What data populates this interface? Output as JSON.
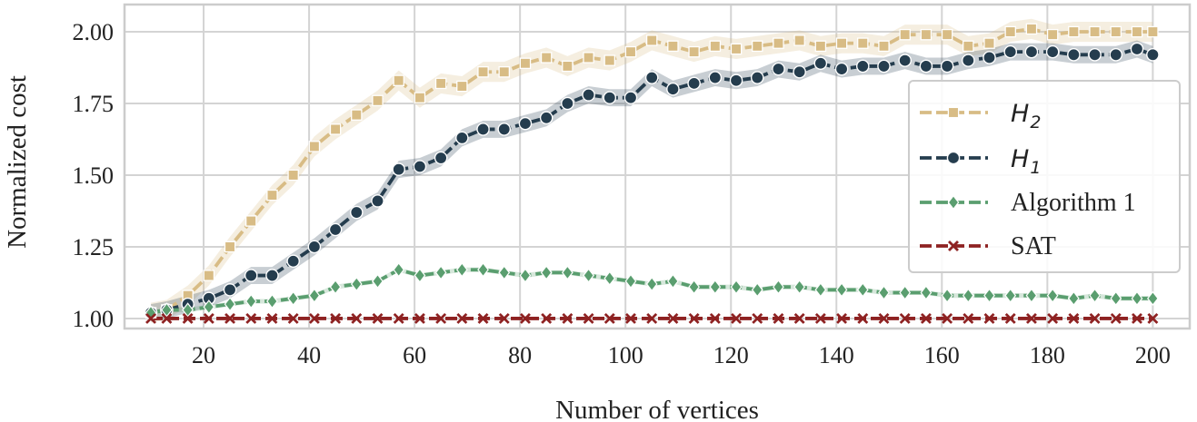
{
  "chart_data": {
    "type": "line",
    "xlabel": "Number of vertices",
    "ylabel": "Normalized cost",
    "xlim": [
      5,
      207
    ],
    "ylim": [
      0.965,
      2.095
    ],
    "xticks": [
      20,
      40,
      60,
      80,
      100,
      120,
      140,
      160,
      180,
      200
    ],
    "yticks": [
      1.0,
      1.25,
      1.5,
      1.75,
      2.0
    ],
    "ytick_labels": [
      "1.00",
      "1.25",
      "1.50",
      "1.75",
      "2.00"
    ],
    "grid": true,
    "legend_position": "right",
    "x": [
      10,
      13,
      17,
      21,
      25,
      29,
      33,
      37,
      41,
      45,
      49,
      53,
      57,
      61,
      65,
      69,
      73,
      77,
      81,
      85,
      89,
      93,
      97,
      101,
      105,
      109,
      113,
      117,
      121,
      125,
      129,
      133,
      137,
      141,
      145,
      149,
      153,
      157,
      161,
      165,
      169,
      173,
      177,
      181,
      185,
      189,
      193,
      197,
      200
    ],
    "series": [
      {
        "name": "H",
        "name_sub": "2",
        "marker": "square",
        "color": "#D8BC85",
        "band": 0.035,
        "values": [
          1.02,
          1.03,
          1.08,
          1.15,
          1.25,
          1.34,
          1.43,
          1.5,
          1.6,
          1.66,
          1.71,
          1.76,
          1.83,
          1.77,
          1.82,
          1.81,
          1.86,
          1.86,
          1.89,
          1.91,
          1.88,
          1.91,
          1.9,
          1.93,
          1.97,
          1.95,
          1.93,
          1.95,
          1.94,
          1.95,
          1.96,
          1.97,
          1.95,
          1.96,
          1.96,
          1.95,
          1.99,
          1.99,
          1.99,
          1.95,
          1.96,
          2.0,
          2.01,
          1.99,
          2.0,
          2.0,
          2.0,
          2.0,
          2.0
        ]
      },
      {
        "name": "H",
        "name_sub": "1",
        "marker": "circle",
        "color": "#253D4E",
        "band": 0.03,
        "values": [
          1.02,
          1.03,
          1.05,
          1.07,
          1.1,
          1.15,
          1.15,
          1.2,
          1.25,
          1.31,
          1.37,
          1.41,
          1.52,
          1.53,
          1.56,
          1.63,
          1.66,
          1.66,
          1.68,
          1.7,
          1.75,
          1.78,
          1.77,
          1.77,
          1.84,
          1.8,
          1.82,
          1.84,
          1.83,
          1.84,
          1.87,
          1.86,
          1.89,
          1.87,
          1.88,
          1.88,
          1.9,
          1.88,
          1.88,
          1.9,
          1.91,
          1.93,
          1.93,
          1.93,
          1.92,
          1.92,
          1.92,
          1.94,
          1.92
        ]
      },
      {
        "name": "Algorithm 1",
        "marker": "diamond",
        "color": "#5A9E6F",
        "band": 0.008,
        "values": [
          1.02,
          1.03,
          1.03,
          1.04,
          1.05,
          1.06,
          1.06,
          1.07,
          1.08,
          1.11,
          1.12,
          1.13,
          1.17,
          1.15,
          1.16,
          1.17,
          1.17,
          1.16,
          1.15,
          1.16,
          1.16,
          1.15,
          1.14,
          1.13,
          1.12,
          1.13,
          1.11,
          1.11,
          1.11,
          1.1,
          1.11,
          1.11,
          1.1,
          1.1,
          1.1,
          1.09,
          1.09,
          1.09,
          1.08,
          1.08,
          1.08,
          1.08,
          1.08,
          1.08,
          1.07,
          1.08,
          1.07,
          1.07,
          1.07
        ]
      },
      {
        "name": "SAT",
        "marker": "x",
        "color": "#8E2222",
        "band": 0,
        "values": [
          1.0,
          1.0,
          1.0,
          1.0,
          1.0,
          1.0,
          1.0,
          1.0,
          1.0,
          1.0,
          1.0,
          1.0,
          1.0,
          1.0,
          1.0,
          1.0,
          1.0,
          1.0,
          1.0,
          1.0,
          1.0,
          1.0,
          1.0,
          1.0,
          1.0,
          1.0,
          1.0,
          1.0,
          1.0,
          1.0,
          1.0,
          1.0,
          1.0,
          1.0,
          1.0,
          1.0,
          1.0,
          1.0,
          1.0,
          1.0,
          1.0,
          1.0,
          1.0,
          1.0,
          1.0,
          1.0,
          1.0,
          1.0,
          1.0
        ]
      }
    ]
  }
}
